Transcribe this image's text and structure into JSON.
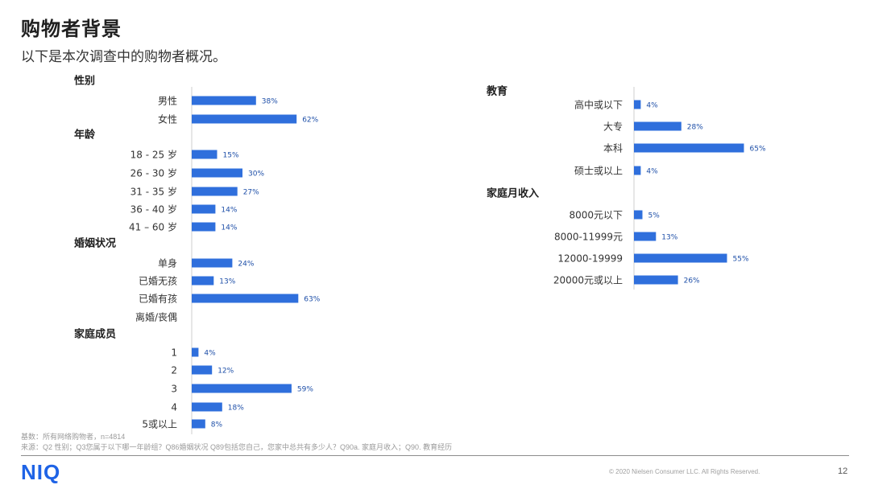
{
  "page": {
    "title": "购物者背景",
    "subtitle": "以下是本次调查中的购物者概况。"
  },
  "chart_data": [
    {
      "type": "bar",
      "orientation": "horizontal",
      "groups": [
        {
          "title": "性别",
          "categories": [
            "男性",
            "女性"
          ],
          "values": [
            38,
            62
          ],
          "labels": [
            "38%",
            "62%"
          ]
        },
        {
          "title": "年龄",
          "categories": [
            "18 - 25 岁",
            "26 - 30 岁",
            "31 - 35 岁",
            "36 - 40 岁",
            "41 – 60 岁"
          ],
          "values": [
            15,
            30,
            27,
            14,
            14
          ],
          "labels": [
            "15%",
            "30%",
            "27%",
            "14%",
            "14%"
          ]
        },
        {
          "title": "婚姻状况",
          "categories": [
            "单身",
            "已婚无孩",
            "已婚有孩",
            "离婚/丧偶"
          ],
          "values": [
            24,
            13,
            63,
            null
          ],
          "labels": [
            "24%",
            "13%",
            "63%",
            ""
          ]
        },
        {
          "title": "家庭成员",
          "categories": [
            "1",
            "2",
            "3",
            "4",
            "5或以上"
          ],
          "values": [
            4,
            12,
            59,
            18,
            8
          ],
          "labels": [
            "4%",
            "12%",
            "59%",
            "18%",
            "8%"
          ]
        }
      ],
      "unit": "%",
      "color": "#2f6fdc"
    },
    {
      "type": "bar",
      "orientation": "horizontal",
      "groups": [
        {
          "title": "教育",
          "categories": [
            "高中或以下",
            "大专",
            "本科",
            "硕士或以上"
          ],
          "values": [
            4,
            28,
            65,
            4
          ],
          "labels": [
            "4%",
            "28%",
            "65%",
            "4%"
          ]
        },
        {
          "title": "家庭月收入",
          "categories": [
            "8000元以下",
            "8000-11999元",
            "12000-19999",
            "20000元或以上"
          ],
          "values": [
            5,
            13,
            55,
            26
          ],
          "labels": [
            "5%",
            "13%",
            "55%",
            "26%"
          ]
        }
      ],
      "unit": "%",
      "color": "#2f6fdc"
    }
  ],
  "footer": {
    "base_note": "基数：所有网络购物者，n=4814",
    "source_note": "来源：Q2 性别；Q3您属于以下哪一年龄组？Q86婚姻状况 Q89包括您自己，您家中总共有多少人？Q90a. 家庭月收入；Q90. 教育经历",
    "logo": "NIQ",
    "copyright": "© 2020 Nielsen Consumer LLC. All Rights Reserved.",
    "page_number": "12"
  }
}
